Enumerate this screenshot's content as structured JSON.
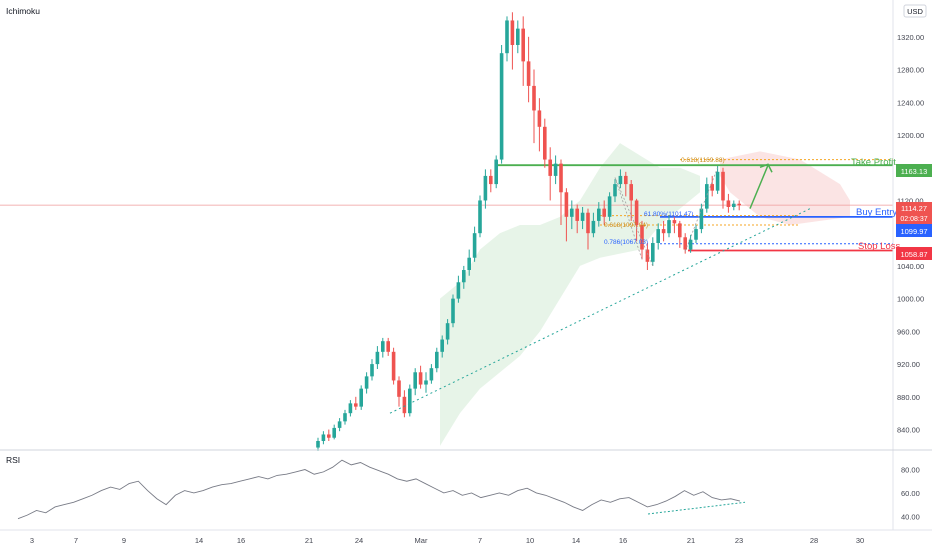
{
  "indicator_label": "Ichimoku",
  "currency_label": "USD",
  "rsi_label": "RSI",
  "price_axis": {
    "ticks": [
      "1320.00",
      "1280.00",
      "1240.00",
      "1200.00",
      "1160.00",
      "1120.00",
      "1080.00",
      "1040.00",
      "1000.00",
      "960.00",
      "920.00",
      "880.00",
      "840.00"
    ]
  },
  "rsi_axis": {
    "ticks": [
      "80.00",
      "60.00",
      "40.00"
    ]
  },
  "time_axis": {
    "ticks": [
      "3",
      "7",
      "9",
      "14",
      "16",
      "21",
      "24",
      "Mar",
      "7",
      "10",
      "14",
      "16",
      "21",
      "23",
      "28",
      "30"
    ]
  },
  "badges": {
    "take_profit": "1163.13",
    "current_price": "1114.27",
    "countdown": "02:08:37",
    "buy_entry": "1099.97",
    "stop_loss": "1058.87"
  },
  "annotations": {
    "take_profit": "Take Profit",
    "buy_entry": "Buy Entry",
    "stop_loss": "Stop Loss",
    "fib_tp": "0.618(1169.88)",
    "fib_entry_a": "61.80%(1101.47)",
    "fib_entry_b": "0.618(1097.04)",
    "fib_sl": "0.786(1067.03)"
  },
  "colors": {
    "up": "#26a69a",
    "down": "#ef5350",
    "take_profit": "#4caf50",
    "buy_entry": "#2962ff",
    "stop_loss": "#f23645",
    "fib": "#f5a623",
    "cloud_bull": "#e3f2e4",
    "cloud_bear": "#fbe1e1"
  },
  "chart_data": {
    "type": "candlestick",
    "y_range": [
      815,
      1365
    ],
    "levels": {
      "take_profit": 1163.13,
      "buy_entry": 1099.97,
      "stop_loss": 1058.87,
      "current_price": 1114.27
    },
    "candles": [
      [
        0,
        818,
        826,
        814,
        830
      ],
      [
        1,
        826,
        834,
        822,
        838
      ],
      [
        2,
        834,
        830,
        826,
        840
      ],
      [
        3,
        830,
        842,
        828,
        846
      ],
      [
        4,
        842,
        850,
        838,
        854
      ],
      [
        5,
        850,
        860,
        846,
        864
      ],
      [
        6,
        860,
        872,
        856,
        876
      ],
      [
        7,
        872,
        868,
        864,
        880
      ],
      [
        8,
        868,
        890,
        864,
        894
      ],
      [
        9,
        890,
        905,
        884,
        910
      ],
      [
        10,
        905,
        920,
        900,
        926
      ],
      [
        11,
        920,
        935,
        914,
        942
      ],
      [
        12,
        935,
        948,
        928,
        952
      ],
      [
        13,
        948,
        935,
        930,
        952
      ],
      [
        14,
        935,
        900,
        895,
        940
      ],
      [
        15,
        900,
        880,
        868,
        905
      ],
      [
        16,
        880,
        860,
        855,
        888
      ],
      [
        17,
        860,
        890,
        856,
        895
      ],
      [
        18,
        890,
        910,
        882,
        915
      ],
      [
        19,
        910,
        895,
        890,
        918
      ],
      [
        20,
        895,
        900,
        885,
        910
      ],
      [
        21,
        900,
        915,
        896,
        920
      ],
      [
        22,
        915,
        935,
        910,
        940
      ],
      [
        23,
        935,
        950,
        928,
        955
      ],
      [
        24,
        950,
        970,
        944,
        975
      ],
      [
        25,
        970,
        1000,
        965,
        1005
      ],
      [
        26,
        1000,
        1020,
        995,
        1028
      ],
      [
        27,
        1020,
        1035,
        1012,
        1040
      ],
      [
        28,
        1035,
        1050,
        1028,
        1060
      ],
      [
        29,
        1050,
        1080,
        1045,
        1088
      ],
      [
        30,
        1080,
        1120,
        1075,
        1126
      ],
      [
        31,
        1120,
        1150,
        1110,
        1158
      ],
      [
        32,
        1150,
        1140,
        1130,
        1158
      ],
      [
        33,
        1140,
        1170,
        1135,
        1175
      ],
      [
        34,
        1170,
        1300,
        1165,
        1310
      ],
      [
        35,
        1300,
        1340,
        1290,
        1345
      ],
      [
        36,
        1340,
        1310,
        1280,
        1350
      ],
      [
        37,
        1310,
        1330,
        1300,
        1340
      ],
      [
        38,
        1330,
        1290,
        1260,
        1345
      ],
      [
        39,
        1290,
        1260,
        1240,
        1320
      ],
      [
        40,
        1260,
        1230,
        1190,
        1280
      ],
      [
        41,
        1230,
        1210,
        1180,
        1245
      ],
      [
        42,
        1210,
        1170,
        1160,
        1220
      ],
      [
        43,
        1170,
        1150,
        1120,
        1185
      ],
      [
        44,
        1150,
        1165,
        1140,
        1175
      ],
      [
        45,
        1165,
        1130,
        1090,
        1170
      ],
      [
        46,
        1130,
        1100,
        1070,
        1135
      ],
      [
        47,
        1100,
        1110,
        1085,
        1120
      ],
      [
        48,
        1110,
        1095,
        1080,
        1115
      ],
      [
        49,
        1095,
        1105,
        1085,
        1112
      ],
      [
        50,
        1105,
        1080,
        1060,
        1110
      ],
      [
        51,
        1080,
        1095,
        1075,
        1105
      ],
      [
        52,
        1095,
        1110,
        1088,
        1118
      ],
      [
        53,
        1110,
        1100,
        1090,
        1120
      ],
      [
        54,
        1100,
        1125,
        1095,
        1130
      ],
      [
        55,
        1125,
        1140,
        1118,
        1146
      ],
      [
        56,
        1140,
        1150,
        1135,
        1158
      ],
      [
        57,
        1150,
        1140,
        1125,
        1155
      ],
      [
        58,
        1140,
        1120,
        1095,
        1145
      ],
      [
        59,
        1120,
        1090,
        1070,
        1122
      ],
      [
        60,
        1090,
        1060,
        1048,
        1095
      ],
      [
        61,
        1060,
        1045,
        1035,
        1068
      ],
      [
        62,
        1045,
        1068,
        1040,
        1075
      ],
      [
        63,
        1068,
        1085,
        1060,
        1092
      ],
      [
        64,
        1085,
        1080,
        1070,
        1095
      ],
      [
        65,
        1080,
        1096,
        1075,
        1102
      ],
      [
        66,
        1096,
        1092,
        1080,
        1100
      ],
      [
        67,
        1092,
        1075,
        1062,
        1095
      ],
      [
        68,
        1075,
        1060,
        1055,
        1080
      ],
      [
        69,
        1060,
        1072,
        1056,
        1078
      ],
      [
        70,
        1072,
        1085,
        1068,
        1090
      ],
      [
        71,
        1085,
        1110,
        1080,
        1116
      ],
      [
        72,
        1110,
        1140,
        1105,
        1148
      ],
      [
        73,
        1140,
        1132,
        1125,
        1150
      ],
      [
        74,
        1132,
        1155,
        1128,
        1162
      ],
      [
        75,
        1155,
        1120,
        1110,
        1160
      ],
      [
        76,
        1120,
        1112,
        1105,
        1128
      ],
      [
        77,
        1112,
        1116,
        1108,
        1120
      ],
      [
        78,
        1116,
        1114,
        1108,
        1120
      ]
    ],
    "rsi": [
      38,
      41,
      45,
      43,
      48,
      50,
      52,
      55,
      58,
      62,
      65,
      63,
      68,
      70,
      62,
      55,
      50,
      58,
      62,
      60,
      62,
      65,
      67,
      68,
      70,
      72,
      74,
      72,
      75,
      76,
      78,
      80,
      76,
      78,
      82,
      88,
      84,
      86,
      82,
      79,
      76,
      72,
      70,
      72,
      68,
      64,
      60,
      62,
      58,
      60,
      56,
      58,
      60,
      58,
      62,
      64,
      60,
      58,
      55,
      52,
      48,
      45,
      50,
      54,
      52,
      55,
      56,
      52,
      48,
      50,
      53,
      57,
      62,
      58,
      61,
      56,
      54,
      55,
      53
    ],
    "rsi_ylim": [
      30,
      95
    ]
  }
}
